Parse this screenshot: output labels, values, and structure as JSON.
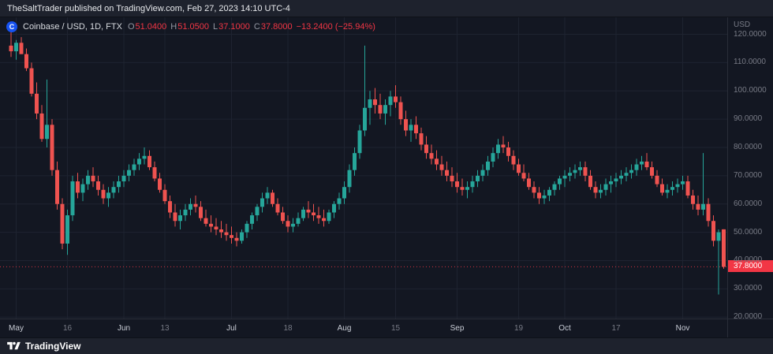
{
  "header": {
    "publish_line": "TheSaltTrader published on TradingView.com, Feb 27, 2023 14:10 UTC-4"
  },
  "legend": {
    "symbol_icon_letter": "C",
    "symbol": "Coinbase / USD, 1D, FTX",
    "o_label": "O",
    "o_value": "51.0400",
    "h_label": "H",
    "h_value": "51.0500",
    "l_label": "L",
    "l_value": "37.1000",
    "c_label": "C",
    "c_value": "37.8000",
    "change": "−13.2400 (−25.94%)"
  },
  "axis": {
    "currency": "USD",
    "last_price_label": "37.8000"
  },
  "footer": {
    "brand": "TradingView"
  },
  "colors": {
    "up": "#26a69a",
    "down": "#ef5350",
    "grid": "#1e2330",
    "badge": "#f23645",
    "bg": "#131722"
  },
  "chart_data": {
    "type": "candlestick",
    "title": "Coinbase / USD, 1D, FTX",
    "symbol": "Coinbase / USD",
    "interval": "1D",
    "exchange": "FTX",
    "ylabel": "USD",
    "ylim": [
      19.5,
      126
    ],
    "y_ticks": [
      120,
      110,
      100,
      90,
      80,
      70,
      60,
      50,
      40,
      30,
      20
    ],
    "x_tick_labels": [
      "May",
      "16",
      "Jun",
      "13",
      "Jul",
      "18",
      "Aug",
      "15",
      "Sep",
      "19",
      "Oct",
      "17",
      "Nov"
    ],
    "x_tick_indices": [
      1,
      11,
      22,
      30,
      43,
      54,
      65,
      75,
      87,
      99,
      108,
      118,
      131
    ],
    "x_tick_major": [
      true,
      false,
      true,
      false,
      true,
      false,
      true,
      false,
      true,
      false,
      true,
      false,
      true
    ],
    "last_price": 37.8,
    "last_open": 51.04,
    "last_high": 51.05,
    "last_low": 37.1,
    "last_close": 37.8,
    "change_abs": -13.24,
    "change_pct": -25.94,
    "candles": [
      [
        116,
        121,
        112,
        114
      ],
      [
        114,
        118,
        111,
        117
      ],
      [
        117,
        119,
        113,
        113
      ],
      [
        113,
        115,
        107,
        108
      ],
      [
        108,
        110,
        98,
        99
      ],
      [
        99,
        103,
        90,
        92
      ],
      [
        92,
        95,
        82,
        83
      ],
      [
        83,
        104,
        80,
        88
      ],
      [
        88,
        90,
        70,
        72
      ],
      [
        72,
        75,
        58,
        60
      ],
      [
        60,
        62,
        44,
        46
      ],
      [
        46,
        58,
        42,
        56
      ],
      [
        56,
        70,
        54,
        68
      ],
      [
        68,
        71,
        62,
        64
      ],
      [
        64,
        69,
        61,
        67
      ],
      [
        67,
        72,
        65,
        70
      ],
      [
        70,
        73,
        66,
        68
      ],
      [
        68,
        70,
        63,
        65
      ],
      [
        65,
        67,
        60,
        62
      ],
      [
        62,
        66,
        59,
        64
      ],
      [
        64,
        68,
        62,
        66
      ],
      [
        66,
        70,
        64,
        68
      ],
      [
        68,
        72,
        66,
        70
      ],
      [
        70,
        74,
        68,
        72
      ],
      [
        72,
        76,
        70,
        74
      ],
      [
        74,
        78,
        72,
        76
      ],
      [
        76,
        80,
        74,
        77
      ],
      [
        77,
        79,
        72,
        73
      ],
      [
        73,
        75,
        68,
        69
      ],
      [
        69,
        71,
        64,
        65
      ],
      [
        65,
        67,
        60,
        61
      ],
      [
        61,
        63,
        55,
        57
      ],
      [
        57,
        60,
        52,
        54
      ],
      [
        54,
        58,
        51,
        56
      ],
      [
        56,
        60,
        54,
        58
      ],
      [
        58,
        62,
        56,
        60
      ],
      [
        60,
        63,
        57,
        59
      ],
      [
        59,
        61,
        54,
        55
      ],
      [
        55,
        58,
        52,
        53
      ],
      [
        53,
        56,
        50,
        52
      ],
      [
        52,
        55,
        49,
        51
      ],
      [
        51,
        54,
        48,
        50
      ],
      [
        50,
        53,
        47,
        49
      ],
      [
        49,
        52,
        46,
        48
      ],
      [
        48,
        50,
        45,
        47
      ],
      [
        47,
        51,
        46,
        50
      ],
      [
        50,
        54,
        48,
        53
      ],
      [
        53,
        57,
        51,
        56
      ],
      [
        56,
        60,
        54,
        59
      ],
      [
        59,
        64,
        57,
        62
      ],
      [
        62,
        66,
        60,
        64
      ],
      [
        64,
        65,
        59,
        60
      ],
      [
        60,
        62,
        56,
        57
      ],
      [
        57,
        59,
        53,
        54
      ],
      [
        54,
        56,
        50,
        52
      ],
      [
        52,
        55,
        50,
        53
      ],
      [
        53,
        57,
        52,
        55
      ],
      [
        55,
        59,
        54,
        58
      ],
      [
        58,
        61,
        55,
        57
      ],
      [
        57,
        60,
        54,
        56
      ],
      [
        56,
        59,
        53,
        55
      ],
      [
        55,
        58,
        52,
        54
      ],
      [
        54,
        58,
        53,
        57
      ],
      [
        57,
        61,
        55,
        60
      ],
      [
        60,
        64,
        58,
        62
      ],
      [
        62,
        68,
        60,
        66
      ],
      [
        66,
        74,
        64,
        72
      ],
      [
        72,
        80,
        70,
        78
      ],
      [
        78,
        88,
        76,
        86
      ],
      [
        86,
        116,
        84,
        94
      ],
      [
        94,
        100,
        88,
        97
      ],
      [
        97,
        101,
        92,
        95
      ],
      [
        95,
        99,
        90,
        92
      ],
      [
        92,
        97,
        88,
        95
      ],
      [
        95,
        100,
        91,
        98
      ],
      [
        98,
        102,
        94,
        96
      ],
      [
        96,
        98,
        88,
        90
      ],
      [
        90,
        93,
        84,
        86
      ],
      [
        86,
        90,
        82,
        88
      ],
      [
        88,
        91,
        83,
        85
      ],
      [
        85,
        87,
        79,
        81
      ],
      [
        81,
        84,
        76,
        78
      ],
      [
        78,
        81,
        74,
        76
      ],
      [
        76,
        79,
        72,
        74
      ],
      [
        74,
        77,
        70,
        72
      ],
      [
        72,
        75,
        68,
        70
      ],
      [
        70,
        73,
        66,
        68
      ],
      [
        68,
        71,
        64,
        66
      ],
      [
        66,
        69,
        63,
        65
      ],
      [
        65,
        68,
        62,
        66
      ],
      [
        66,
        70,
        64,
        68
      ],
      [
        68,
        72,
        66,
        70
      ],
      [
        70,
        74,
        68,
        72
      ],
      [
        72,
        77,
        70,
        75
      ],
      [
        75,
        80,
        73,
        78
      ],
      [
        78,
        83,
        76,
        81
      ],
      [
        81,
        84,
        78,
        80
      ],
      [
        80,
        82,
        75,
        77
      ],
      [
        77,
        79,
        72,
        74
      ],
      [
        74,
        76,
        70,
        71
      ],
      [
        71,
        74,
        68,
        69
      ],
      [
        69,
        71,
        65,
        66
      ],
      [
        66,
        68,
        62,
        64
      ],
      [
        64,
        66,
        60,
        62
      ],
      [
        62,
        65,
        60,
        63
      ],
      [
        63,
        66,
        61,
        65
      ],
      [
        65,
        68,
        63,
        67
      ],
      [
        67,
        70,
        65,
        69
      ],
      [
        69,
        72,
        66,
        70
      ],
      [
        70,
        73,
        68,
        71
      ],
      [
        71,
        74,
        69,
        72
      ],
      [
        72,
        75,
        70,
        73
      ],
      [
        73,
        75,
        68,
        70
      ],
      [
        70,
        72,
        65,
        66
      ],
      [
        66,
        68,
        62,
        64
      ],
      [
        64,
        67,
        62,
        65
      ],
      [
        65,
        69,
        63,
        67
      ],
      [
        67,
        70,
        64,
        68
      ],
      [
        68,
        71,
        66,
        69
      ],
      [
        69,
        72,
        67,
        70
      ],
      [
        70,
        73,
        68,
        71
      ],
      [
        71,
        74,
        69,
        72
      ],
      [
        72,
        76,
        70,
        74
      ],
      [
        74,
        77,
        72,
        75
      ],
      [
        75,
        78,
        72,
        73
      ],
      [
        73,
        75,
        69,
        70
      ],
      [
        70,
        72,
        66,
        67
      ],
      [
        67,
        69,
        63,
        64
      ],
      [
        64,
        67,
        62,
        65
      ],
      [
        65,
        68,
        63,
        66
      ],
      [
        66,
        69,
        64,
        67
      ],
      [
        67,
        70,
        65,
        68
      ],
      [
        68,
        70,
        62,
        63
      ],
      [
        63,
        65,
        58,
        60
      ],
      [
        60,
        63,
        56,
        58
      ],
      [
        58,
        78,
        56,
        60
      ],
      [
        60,
        62,
        52,
        54
      ],
      [
        54,
        56,
        45,
        47
      ],
      [
        47,
        51,
        28,
        50
      ],
      [
        51.04,
        51.05,
        37.1,
        37.8
      ]
    ]
  }
}
